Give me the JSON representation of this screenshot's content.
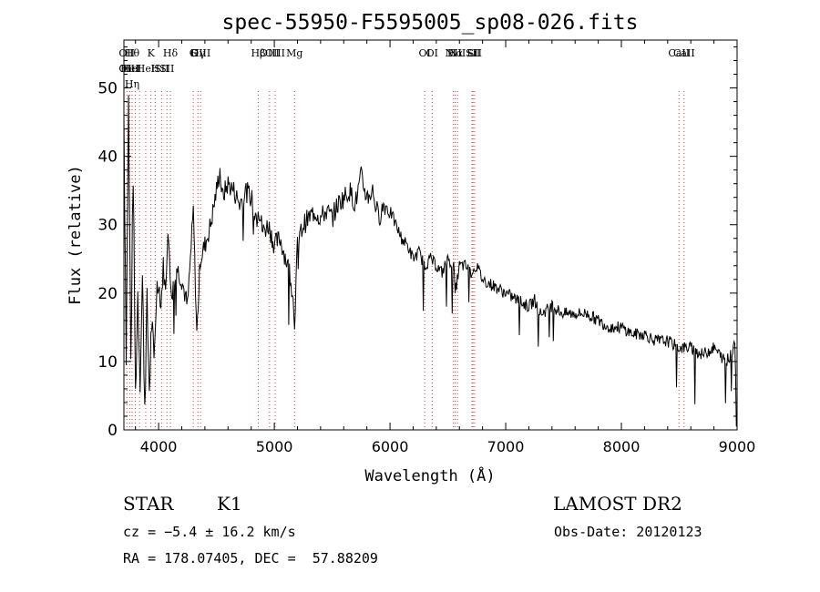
{
  "chart_data": {
    "type": "line",
    "title": "spec-55950-F5595005_sp08-026.fits",
    "xlabel": "Wavelength (Å)",
    "ylabel": "Flux (relative)",
    "xlim": [
      3700,
      9000
    ],
    "ylim": [
      0,
      57
    ],
    "xticks": [
      4000,
      5000,
      6000,
      7000,
      8000,
      9000
    ],
    "yticks": [
      0,
      10,
      20,
      30,
      40,
      50
    ],
    "grid": false,
    "series": [
      {
        "x": [
          3700,
          3720,
          3740,
          3760,
          3780,
          3800,
          3820,
          3840,
          3860,
          3880,
          3900,
          3920,
          3940,
          3960,
          3980,
          4000,
          4020,
          4040,
          4060,
          4080,
          4100,
          4120,
          4150,
          4200,
          4250,
          4300,
          4330,
          4360,
          4400,
          4450,
          4500,
          4530,
          4550,
          4600,
          4650,
          4700,
          4750,
          4800,
          4850,
          4860,
          4900,
          4950,
          5000,
          5050,
          5100,
          5150,
          5175,
          5200,
          5250,
          5300,
          5350,
          5400,
          5450,
          5500,
          5550,
          5600,
          5650,
          5700,
          5750,
          5800,
          5850,
          5900,
          5950,
          6000,
          6050,
          6100,
          6150,
          6200,
          6250,
          6300,
          6350,
          6400,
          6450,
          6500,
          6550,
          6563,
          6600,
          6650,
          6700,
          6750,
          6800,
          6900,
          7000,
          7100,
          7200,
          7250,
          7300,
          7400,
          7500,
          7600,
          7700,
          7800,
          7900,
          8000,
          8100,
          8200,
          8300,
          8400,
          8500,
          8600,
          8700,
          8800,
          8850,
          8900,
          8950,
          8980,
          9000
        ],
        "y": [
          46,
          12,
          48,
          10,
          38,
          5,
          20,
          8,
          22,
          4,
          18,
          6,
          16,
          9,
          20,
          22,
          18,
          24,
          20,
          30,
          22,
          20,
          24,
          22,
          18,
          32,
          14,
          25,
          27,
          30,
          35,
          38,
          34,
          36,
          35,
          33,
          35,
          34,
          31,
          33,
          29,
          30,
          27,
          28,
          25,
          22,
          16,
          27,
          30,
          31,
          32,
          31,
          32,
          31,
          33,
          34,
          35,
          33,
          37,
          34,
          35,
          31,
          33,
          32,
          30,
          28,
          27,
          25,
          26,
          24,
          25,
          24,
          23,
          25,
          24,
          20,
          24,
          24,
          23,
          24,
          22,
          21,
          20,
          19,
          18,
          19,
          17,
          18,
          17,
          17,
          17,
          16,
          15,
          15,
          14,
          14,
          13,
          13,
          12,
          12,
          11,
          12,
          11,
          10,
          11,
          13,
          1
        ]
      }
    ],
    "lines": [
      {
        "x": 3725,
        "labels": [
          "OII",
          "OII"
        ]
      },
      {
        "x": 3750,
        "labels": [
          "",
          "HeI"
        ]
      },
      {
        "x": 3771,
        "labels": [
          "Hθ",
          "HeI",
          "Hη"
        ]
      },
      {
        "x": 3798,
        "labels": [
          "",
          ""
        ]
      },
      {
        "x": 3835,
        "labels": [
          "",
          "",
          ""
        ]
      },
      {
        "x": 3889,
        "labels": [
          "",
          "HeI",
          ""
        ]
      },
      {
        "x": 3934,
        "labels": [
          "K"
        ]
      },
      {
        "x": 3970,
        "labels": [
          "",
          "H"
        ]
      },
      {
        "x": 4026,
        "labels": [
          "",
          "SII"
        ]
      },
      {
        "x": 4072,
        "labels": [
          "",
          "SII"
        ]
      },
      {
        "x": 4102,
        "labels": [
          "Hδ"
        ]
      },
      {
        "x": 4300,
        "labels": [
          "G"
        ]
      },
      {
        "x": 4340,
        "labels": [
          "Hγ"
        ]
      },
      {
        "x": 4363,
        "labels": [
          "OIII"
        ]
      },
      {
        "x": 4861,
        "labels": [
          "Hβ"
        ]
      },
      {
        "x": 4959,
        "labels": [
          "OIII"
        ]
      },
      {
        "x": 5007,
        "labels": [
          "OIII"
        ]
      },
      {
        "x": 5175,
        "labels": [
          "Mg"
        ]
      },
      {
        "x": 6300,
        "labels": [
          "OI"
        ]
      },
      {
        "x": 6364,
        "labels": [
          "OI"
        ]
      },
      {
        "x": 6548,
        "labels": [
          "NII"
        ]
      },
      {
        "x": 6563,
        "labels": [
          "Hα"
        ]
      },
      {
        "x": 6583,
        "labels": [
          "NII"
        ]
      },
      {
        "x": 6708,
        "labels": [
          "Li"
        ]
      },
      {
        "x": 6717,
        "labels": [
          "SII"
        ]
      },
      {
        "x": 6731,
        "labels": [
          "SII"
        ]
      },
      {
        "x": 8498,
        "labels": [
          "CaII"
        ]
      },
      {
        "x": 8542,
        "labels": [
          "CaII"
        ]
      }
    ]
  },
  "info": {
    "object_class": "STAR",
    "subclass": "K1",
    "survey": "LAMOST DR2",
    "redshift": "cz = −5.4 ± 16.2 km/s",
    "obs_date": "Obs-Date: 20120123",
    "coords": "RA = 178.07405, DEC =  57.88209"
  }
}
